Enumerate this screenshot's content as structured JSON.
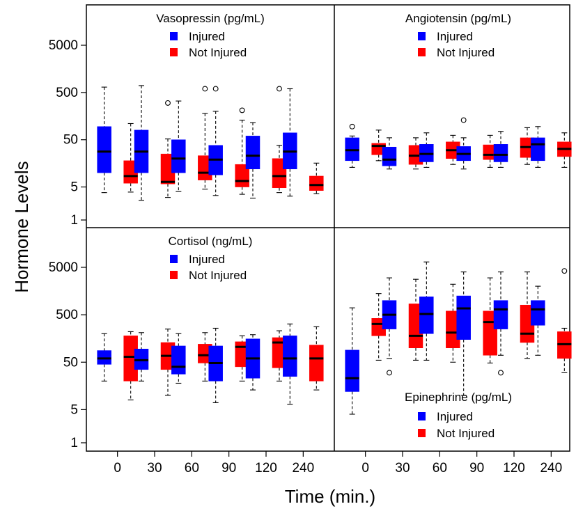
{
  "chart_data": {
    "type": "box",
    "xlabel": "Time (min.)",
    "ylabel": "Hormone Levels",
    "y_scale": "log",
    "ylim": [
      1,
      25000
    ],
    "y_ticks": [
      1,
      5,
      50,
      500,
      5000
    ],
    "categories": [
      "0",
      "30",
      "60",
      "90",
      "120",
      "240"
    ],
    "legend_entries": [
      "Injured",
      "Not Injured"
    ],
    "colors": {
      "Injured": "#0000ff",
      "Not Injured": "#ff0000"
    },
    "panels": [
      {
        "title": "Vasopressin (pg/mL)",
        "position": "top-left",
        "legend_position": "top",
        "boxes": [
          {
            "group": "Injured",
            "time": "0",
            "whisker_low": 3.8,
            "q1": 10,
            "median": 28,
            "q3": 95,
            "whisker_high": 650,
            "outliers": []
          },
          {
            "group": "Not Injured",
            "time": "0",
            "whisker_low": 3.9,
            "q1": 6,
            "median": 8.5,
            "q3": 18,
            "whisker_high": 110,
            "outliers": []
          },
          {
            "group": "Injured",
            "time": "30",
            "whisker_low": 2.6,
            "q1": 10,
            "median": 28,
            "q3": 80,
            "whisker_high": 700,
            "outliers": []
          },
          {
            "group": "Not Injured",
            "time": "30",
            "whisker_low": 3,
            "q1": 5.8,
            "median": 6.4,
            "q3": 25,
            "whisker_high": 52,
            "outliers": [
              300
            ]
          },
          {
            "group": "Injured",
            "time": "60",
            "whisker_low": 4,
            "q1": 10,
            "median": 20,
            "q3": 50,
            "whisker_high": 330,
            "outliers": []
          },
          {
            "group": "Not Injured",
            "time": "60",
            "whisker_low": 4.5,
            "q1": 7,
            "median": 10,
            "q3": 23,
            "whisker_high": 180,
            "outliers": [
              600
            ]
          },
          {
            "group": "Injured",
            "time": "90",
            "whisker_low": 3.3,
            "q1": 9,
            "median": 19,
            "q3": 38,
            "whisker_high": 200,
            "outliers": [
              600
            ]
          },
          {
            "group": "Not Injured",
            "time": "90",
            "whisker_low": 3.5,
            "q1": 5,
            "median": 6.7,
            "q3": 15,
            "whisker_high": 130,
            "outliers": [
              210
            ]
          },
          {
            "group": "Injured",
            "time": "120",
            "whisker_low": 2.9,
            "q1": 12,
            "median": 23,
            "q3": 60,
            "whisker_high": 115,
            "outliers": []
          },
          {
            "group": "Not Injured",
            "time": "120",
            "whisker_low": 3.8,
            "q1": 4.8,
            "median": 8.5,
            "q3": 20,
            "whisker_high": 38,
            "outliers": [
              600
            ]
          },
          {
            "group": "Injured",
            "time": "240",
            "whisker_low": 3.2,
            "q1": 12,
            "median": 28,
            "q3": 70,
            "whisker_high": 600,
            "outliers": []
          },
          {
            "group": "Not Injured",
            "time": "240",
            "whisker_low": 3.6,
            "q1": 4.2,
            "median": 5.5,
            "q3": 8.5,
            "whisker_high": 16,
            "outliers": []
          }
        ]
      },
      {
        "title": "Angiotensin (pg/mL)",
        "position": "top-right",
        "legend_position": "top",
        "boxes": [
          {
            "group": "Injured",
            "time": "0",
            "whisker_low": 13,
            "q1": 18,
            "median": 30,
            "q3": 55,
            "whisker_high": 60,
            "outliers": [
              95
            ]
          },
          {
            "group": "Not Injured",
            "time": "0",
            "whisker_low": 18,
            "q1": 24,
            "median": 37,
            "q3": 42,
            "whisker_high": 80,
            "outliers": []
          },
          {
            "group": "Injured",
            "time": "30",
            "whisker_low": 12,
            "q1": 14,
            "median": 19,
            "q3": 35,
            "whisker_high": 55,
            "outliers": []
          },
          {
            "group": "Not Injured",
            "time": "30",
            "whisker_low": 12,
            "q1": 15,
            "median": 23,
            "q3": 38,
            "whisker_high": 55,
            "outliers": []
          },
          {
            "group": "Injured",
            "time": "60",
            "whisker_low": 13,
            "q1": 17,
            "median": 25,
            "q3": 40,
            "whisker_high": 70,
            "outliers": []
          },
          {
            "group": "Not Injured",
            "time": "60",
            "whisker_low": 15,
            "q1": 20,
            "median": 30,
            "q3": 45,
            "whisker_high": 62,
            "outliers": []
          },
          {
            "group": "Injured",
            "time": "90",
            "whisker_low": 12,
            "q1": 18,
            "median": 25,
            "q3": 36,
            "whisker_high": 55,
            "outliers": [
              130
            ]
          },
          {
            "group": "Not Injured",
            "time": "90",
            "whisker_low": 13,
            "q1": 19,
            "median": 24,
            "q3": 39,
            "whisker_high": 62,
            "outliers": []
          },
          {
            "group": "Injured",
            "time": "120",
            "whisker_low": 13,
            "q1": 17,
            "median": 24,
            "q3": 40,
            "whisker_high": 75,
            "outliers": []
          },
          {
            "group": "Not Injured",
            "time": "120",
            "whisker_low": 15,
            "q1": 21,
            "median": 35,
            "q3": 55,
            "whisker_high": 90,
            "outliers": []
          },
          {
            "group": "Injured",
            "time": "240",
            "whisker_low": 13,
            "q1": 18,
            "median": 40,
            "q3": 55,
            "whisker_high": 95,
            "outliers": []
          },
          {
            "group": "Not Injured",
            "time": "240",
            "whisker_low": 13,
            "q1": 22,
            "median": 32,
            "q3": 45,
            "whisker_high": 70,
            "outliers": []
          }
        ]
      },
      {
        "title": "Cortisol (ng/mL)",
        "position": "bottom-left",
        "legend_position": "top",
        "boxes": [
          {
            "group": "Injured",
            "time": "0",
            "whisker_low": 20,
            "q1": 45,
            "median": 60,
            "q3": 88,
            "whisker_high": 200,
            "outliers": []
          },
          {
            "group": "Not Injured",
            "time": "0",
            "whisker_low": 8,
            "q1": 20,
            "median": 65,
            "q3": 180,
            "whisker_high": 220,
            "outliers": []
          },
          {
            "group": "Injured",
            "time": "30",
            "whisker_low": 20,
            "q1": 35,
            "median": 55,
            "q3": 95,
            "whisker_high": 210,
            "outliers": []
          },
          {
            "group": "Not Injured",
            "time": "30",
            "whisker_low": 10,
            "q1": 35,
            "median": 68,
            "q3": 130,
            "whisker_high": 250,
            "outliers": []
          },
          {
            "group": "Injured",
            "time": "60",
            "whisker_low": 18,
            "q1": 28,
            "median": 40,
            "q3": 110,
            "whisker_high": 200,
            "outliers": []
          },
          {
            "group": "Not Injured",
            "time": "60",
            "whisker_low": 20,
            "q1": 48,
            "median": 70,
            "q3": 120,
            "whisker_high": 210,
            "outliers": []
          },
          {
            "group": "Injured",
            "time": "90",
            "whisker_low": 7,
            "q1": 20,
            "median": 48,
            "q3": 110,
            "whisker_high": 260,
            "outliers": []
          },
          {
            "group": "Not Injured",
            "time": "90",
            "whisker_low": 20,
            "q1": 40,
            "median": 105,
            "q3": 135,
            "whisker_high": 180,
            "outliers": []
          },
          {
            "group": "Injured",
            "time": "120",
            "whisker_low": 13,
            "q1": 23,
            "median": 60,
            "q3": 155,
            "whisker_high": 190,
            "outliers": []
          },
          {
            "group": "Not Injured",
            "time": "120",
            "whisker_low": 20,
            "q1": 38,
            "median": 130,
            "q3": 165,
            "whisker_high": 230,
            "outliers": []
          },
          {
            "group": "Injured",
            "time": "240",
            "whisker_low": 6.5,
            "q1": 25,
            "median": 60,
            "q3": 180,
            "whisker_high": 320,
            "outliers": []
          },
          {
            "group": "Not Injured",
            "time": "240",
            "whisker_low": 13,
            "q1": 20,
            "median": 60,
            "q3": 115,
            "whisker_high": 280,
            "outliers": []
          }
        ]
      },
      {
        "title": "Epinephrine (pg/mL)",
        "position": "bottom-right",
        "legend_position": "bottom",
        "boxes": [
          {
            "group": "Injured",
            "time": "0",
            "whisker_low": 4,
            "q1": 12,
            "median": 23,
            "q3": 90,
            "whisker_high": 700,
            "outliers": []
          },
          {
            "group": "Not Injured",
            "time": "0",
            "whisker_low": 55,
            "q1": 180,
            "median": 320,
            "q3": 420,
            "whisker_high": 1400,
            "outliers": []
          },
          {
            "group": "Injured",
            "time": "30",
            "whisker_low": 60,
            "q1": 250,
            "median": 500,
            "q3": 1000,
            "whisker_high": 3000,
            "outliers": [
              30
            ]
          },
          {
            "group": "Not Injured",
            "time": "30",
            "whisker_low": 55,
            "q1": 100,
            "median": 180,
            "q3": 850,
            "whisker_high": 2800,
            "outliers": []
          },
          {
            "group": "Injured",
            "time": "60",
            "whisker_low": 55,
            "q1": 200,
            "median": 520,
            "q3": 1200,
            "whisker_high": 6500,
            "outliers": []
          },
          {
            "group": "Not Injured",
            "time": "60",
            "whisker_low": 50,
            "q1": 100,
            "median": 210,
            "q3": 600,
            "whisker_high": 2200,
            "outliers": []
          },
          {
            "group": "Injured",
            "time": "90",
            "whisker_low": 10,
            "q1": 150,
            "median": 680,
            "q3": 1250,
            "whisker_high": 4000,
            "outliers": []
          },
          {
            "group": "Not Injured",
            "time": "90",
            "whisker_low": 48,
            "q1": 70,
            "median": 350,
            "q3": 600,
            "whisker_high": 3000,
            "outliers": []
          },
          {
            "group": "Injured",
            "time": "120",
            "whisker_low": 70,
            "q1": 250,
            "median": 650,
            "q3": 1000,
            "whisker_high": 4000,
            "outliers": [
              30
            ]
          },
          {
            "group": "Not Injured",
            "time": "120",
            "whisker_low": 60,
            "q1": 130,
            "median": 200,
            "q3": 800,
            "whisker_high": 4000,
            "outliers": []
          },
          {
            "group": "Injured",
            "time": "240",
            "whisker_low": 70,
            "q1": 300,
            "median": 650,
            "q3": 1000,
            "whisker_high": 2000,
            "outliers": []
          },
          {
            "group": "Not Injured",
            "time": "240",
            "whisker_low": 30,
            "q1": 60,
            "median": 120,
            "q3": 220,
            "whisker_high": 260,
            "outliers": [
              4200
            ]
          }
        ]
      }
    ]
  }
}
